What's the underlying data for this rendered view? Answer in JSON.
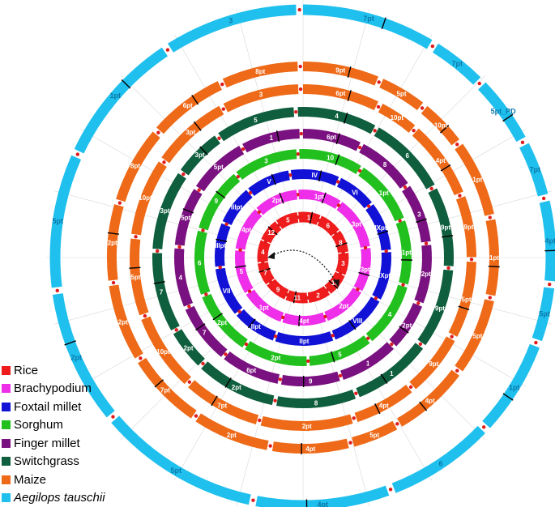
{
  "legend": [
    {
      "species": "Rice",
      "color": "#ee1c1c",
      "italic": false
    },
    {
      "species": "Brachypodium",
      "color": "#ee2ee8",
      "italic": false
    },
    {
      "species": "Foxtail millet",
      "color": "#1212d6",
      "italic": false
    },
    {
      "species": "Sorghum",
      "color": "#22c01e",
      "italic": false
    },
    {
      "species": "Finger millet",
      "color": "#7a1180",
      "italic": false
    },
    {
      "species": "Switchgrass",
      "color": "#0f5e3e",
      "italic": false
    },
    {
      "species": "Maize",
      "color": "#ee6a18",
      "italic": false
    },
    {
      "species": "Aegilops tauschii",
      "color": "#1fc0ee",
      "italic": true
    }
  ],
  "rings": [
    {
      "species": "Rice",
      "color": "#ee1c1c",
      "segments": [
        {
          "label": "1",
          "span": 1
        },
        {
          "label": "6",
          "span": 1
        },
        {
          "label": "8",
          "span": 1
        },
        {
          "label": "3",
          "span": 1
        },
        {
          "label": "10",
          "span": 1
        },
        {
          "label": "2",
          "span": 1
        },
        {
          "label": "11",
          "span": 1
        },
        {
          "label": "9",
          "span": 1
        },
        {
          "label": "7",
          "span": 1
        },
        {
          "label": "4",
          "span": 1
        },
        {
          "label": "12",
          "span": 1
        },
        {
          "label": "5",
          "span": 1
        }
      ]
    },
    {
      "species": "Brachypodium",
      "color": "#ee2ee8",
      "segments": [
        {
          "label": "1pt",
          "span": 1
        },
        {
          "label": "3pt",
          "span": 1.2
        },
        {
          "label": "3pt",
          "span": 1
        },
        {
          "label": "2pt",
          "span": 1
        },
        {
          "label": "4pt",
          "span": 1
        },
        {
          "label": "1pt",
          "span": 1
        },
        {
          "label": "5",
          "span": 1
        },
        {
          "label": "4pt",
          "span": 1
        },
        {
          "label": "2pt",
          "span": 1
        }
      ]
    },
    {
      "species": "Foxtail millet",
      "color": "#1212d6",
      "segments": [
        {
          "label": "IV",
          "span": 1
        },
        {
          "label": "VI",
          "span": 0.8
        },
        {
          "label": "IXpt",
          "span": 1
        },
        {
          "label": "IXpt",
          "span": 1
        },
        {
          "label": "VIII",
          "span": 1.2
        },
        {
          "label": "IIpt",
          "span": 1.2
        },
        {
          "label": "IIpt",
          "span": 0.9
        },
        {
          "label": "VII",
          "span": 1
        },
        {
          "label": "IIIpt",
          "span": 0.9
        },
        {
          "label": "IIIpt",
          "span": 0.8
        },
        {
          "label": "V",
          "span": 0.9
        }
      ]
    },
    {
      "species": "Sorghum",
      "color": "#22c01e",
      "segments": [
        {
          "label": "10",
          "span": 1
        },
        {
          "label": "1pt",
          "span": 1
        },
        {
          "label": "1pt",
          "span": 1
        },
        {
          "label": "4",
          "span": 1
        },
        {
          "label": "5",
          "span": 1
        },
        {
          "label": "2pt",
          "span": 1
        },
        {
          "label": "2pt",
          "span": 1
        },
        {
          "label": "6",
          "span": 1
        },
        {
          "label": "9",
          "span": 1
        },
        {
          "label": "3",
          "span": 1
        }
      ]
    },
    {
      "species": "Finger millet",
      "color": "#7a1180",
      "segments": [
        {
          "label": "6pt",
          "span": 1
        },
        {
          "label": "8",
          "span": 1
        },
        {
          "label": "3",
          "span": 1
        },
        {
          "label": "2pt",
          "span": 1
        },
        {
          "label": "2pt",
          "span": 0.8
        },
        {
          "label": "1",
          "span": 1
        },
        {
          "label": "9",
          "span": 1
        },
        {
          "label": "6pt",
          "span": 1
        },
        {
          "label": "7",
          "span": 1
        },
        {
          "label": "4",
          "span": 1
        },
        {
          "label": "5pt",
          "span": 1
        },
        {
          "label": "5pt",
          "span": 1
        },
        {
          "label": "1",
          "span": 1
        }
      ]
    },
    {
      "species": "Switchgrass",
      "color": "#0f5e3e",
      "segments": [
        {
          "label": "4",
          "span": 1
        },
        {
          "label": "6",
          "span": 1
        },
        {
          "label": "9pt",
          "span": 1
        },
        {
          "label": "9pt",
          "span": 1
        },
        {
          "label": "1",
          "span": 1
        },
        {
          "label": "8",
          "span": 1
        },
        {
          "label": "2pt",
          "span": 1
        },
        {
          "label": "2pt",
          "span": 0.5
        },
        {
          "label": "7",
          "span": 1
        },
        {
          "label": "3pt",
          "span": 1
        },
        {
          "label": "3pt",
          "span": 0.6
        },
        {
          "label": "5",
          "span": 1
        }
      ]
    },
    {
      "species": "Maize",
      "color": "#ee6a18",
      "segments": [
        {
          "label": "6pt",
          "span": 1
        },
        {
          "label": "10pt",
          "span": 0.5
        },
        {
          "label": "4pt",
          "span": 1
        },
        {
          "label": "9pt",
          "span": 0.8
        },
        {
          "label": "5pt",
          "span": 1
        },
        {
          "label": "9pt",
          "span": 0.8
        },
        {
          "label": "4pt",
          "span": 0.8
        },
        {
          "label": "2pt",
          "span": 1.2
        },
        {
          "label": "7pt",
          "span": 1
        },
        {
          "label": "10pt",
          "span": 1
        },
        {
          "label": "5pt",
          "span": 1
        },
        {
          "label": "10pt",
          "span": 1
        },
        {
          "label": "3pt",
          "span": 1
        },
        {
          "label": "3",
          "span": 1
        }
      ]
    },
    {
      "species": "Maize",
      "color": "#ee6a18",
      "segments": [
        {
          "label": "9pt",
          "span": 1
        },
        {
          "label": "5pt",
          "span": 0.6
        },
        {
          "label": "10pt",
          "span": 0.6
        },
        {
          "label": "1pt",
          "span": 1
        },
        {
          "label": "1pt",
          "span": 1
        },
        {
          "label": "5pt",
          "span": 1
        },
        {
          "label": "4pt",
          "span": 1
        },
        {
          "label": "5pt",
          "span": 0.6
        },
        {
          "label": "4pt",
          "span": 1
        },
        {
          "label": "2pt",
          "span": 1
        },
        {
          "label": "7pt",
          "span": 1
        },
        {
          "label": "2pt",
          "span": 1
        },
        {
          "label": "2pt",
          "span": 1
        },
        {
          "label": "8pt",
          "span": 1
        },
        {
          "label": "6pt",
          "span": 1
        },
        {
          "label": "8pt",
          "span": 1
        }
      ]
    },
    {
      "species": "Aegilops tauschii",
      "color": "#1fc0ee",
      "segments": [
        {
          "label": "7pt",
          "span": 1
        },
        {
          "label": "7pt",
          "span": 0.4
        },
        {
          "label": "5pt_PD",
          "span": 0.5
        },
        {
          "label": "7pt",
          "span": 0.4
        },
        {
          "label": "4pt",
          "span": 0.6
        },
        {
          "label": "5pt",
          "span": 0.4
        },
        {
          "label": "1pt",
          "span": 0.7
        },
        {
          "label": "6",
          "span": 0.8
        },
        {
          "label": "4pt",
          "span": 1
        },
        {
          "label": "5pt",
          "span": 1.2
        },
        {
          "label": "2pt",
          "span": 1
        },
        {
          "label": "5pt",
          "span": 1
        },
        {
          "label": "1pt",
          "span": 1
        },
        {
          "label": "3",
          "span": 1
        }
      ]
    }
  ],
  "arrow": {
    "symbol": "curved double-headed dotted arrow"
  }
}
